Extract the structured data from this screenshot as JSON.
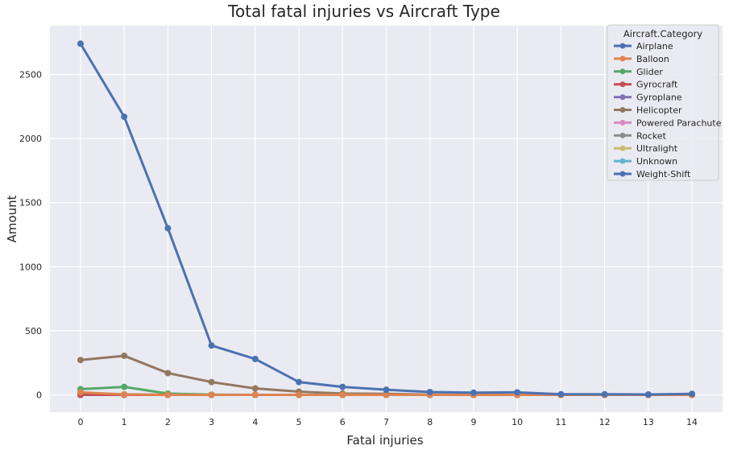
{
  "chart_data": {
    "type": "line",
    "title": "Total fatal injuries vs Aircraft Type",
    "xlabel": "Fatal injuries",
    "ylabel": "Amount",
    "x": [
      0,
      1,
      2,
      3,
      4,
      5,
      6,
      7,
      8,
      9,
      10,
      11,
      12,
      13,
      14
    ],
    "x_tick_labels": [
      "0",
      "1",
      "2",
      "3",
      "4",
      "5",
      "6",
      "7",
      "8",
      "9",
      "10",
      "11",
      "12",
      "13",
      "14"
    ],
    "y_ticks": [
      0,
      500,
      1000,
      1500,
      2000,
      2500
    ],
    "y_tick_labels": [
      "0",
      "500",
      "1000",
      "1500",
      "2000",
      "2500"
    ],
    "ylim": [
      -135,
      2880
    ],
    "xlim": [
      -0.7,
      14.7
    ],
    "grid": true,
    "legend": {
      "title": "Aircraft.Category",
      "placement": "top-right"
    },
    "series": [
      {
        "name": "Airplane",
        "color": "#4c72b0",
        "values": [
          2740,
          2170,
          1300,
          385,
          280,
          100,
          62,
          40,
          22,
          17,
          20,
          5,
          5,
          3,
          8
        ]
      },
      {
        "name": "Balloon",
        "color": "#dd8452",
        "values": [
          20,
          3,
          0,
          0,
          0,
          0,
          0,
          0,
          0,
          0,
          0,
          0,
          0,
          0,
          0
        ]
      },
      {
        "name": "Glider",
        "color": "#55a868",
        "values": [
          45,
          62,
          10,
          2,
          0,
          0,
          0,
          0,
          0,
          0,
          0,
          0,
          0,
          0,
          0
        ]
      },
      {
        "name": "Gyrocraft",
        "color": "#c44e52",
        "values": [
          1,
          0,
          0,
          0,
          0,
          0,
          0,
          0,
          0,
          0,
          0,
          0,
          0,
          0,
          0
        ]
      },
      {
        "name": "Gyroplane",
        "color": "#8172b3",
        "values": [
          0,
          2,
          0,
          0,
          0,
          0,
          0,
          0,
          0,
          0,
          0,
          0,
          0,
          0,
          0
        ]
      },
      {
        "name": "Helicopter",
        "color": "#937860",
        "values": [
          272,
          305,
          170,
          100,
          50,
          25,
          10,
          8,
          2,
          2,
          0,
          0,
          0,
          0,
          0
        ]
      },
      {
        "name": "Powered Parachute",
        "color": "#da8bc3",
        "values": [
          0,
          0,
          0,
          0,
          0,
          0,
          0,
          0,
          0,
          0,
          0,
          0,
          0,
          0,
          0
        ]
      },
      {
        "name": "Rocket",
        "color": "#8c8c8c",
        "values": [
          0,
          0,
          0,
          0,
          0,
          0,
          0,
          0,
          0,
          0,
          0,
          0,
          0,
          0,
          0
        ]
      },
      {
        "name": "Ultralight",
        "color": "#ccb974",
        "values": [
          12,
          5,
          2,
          0,
          0,
          0,
          0,
          0,
          0,
          0,
          0,
          0,
          0,
          0,
          0
        ]
      },
      {
        "name": "Unknown",
        "color": "#64b5cd",
        "values": [
          2,
          0,
          0,
          0,
          0,
          0,
          0,
          0,
          0,
          0,
          0,
          0,
          0,
          0,
          0
        ]
      },
      {
        "name": "Weight-Shift",
        "color": "#4c72b0",
        "values": [
          0,
          0,
          0,
          0,
          0,
          0,
          0,
          0,
          0,
          0,
          0,
          0,
          0,
          0,
          0
        ]
      }
    ]
  }
}
